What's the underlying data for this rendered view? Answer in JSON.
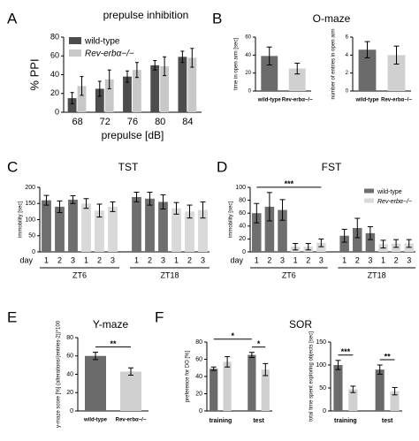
{
  "panels": [
    {
      "letter": "A",
      "title": "prepulse inhibition"
    },
    {
      "letter": "B",
      "title": "O-maze"
    },
    {
      "letter": "C",
      "title": "TST"
    },
    {
      "letter": "D",
      "title": "FST"
    },
    {
      "letter": "E",
      "title": "Y-maze"
    },
    {
      "letter": "F",
      "title": "SOR"
    }
  ],
  "chart_data": [
    {
      "type": "bar",
      "mode": "grouped",
      "ylabel": "% PPI",
      "xlabel": "prepulse [dB]",
      "categories": [
        "68",
        "72",
        "76",
        "80",
        "84"
      ],
      "series": [
        {
          "name": "wild-type",
          "color": "#4d4d4d",
          "values": [
            15,
            25,
            38,
            50,
            59
          ],
          "errors": [
            6,
            8,
            6,
            5,
            6
          ]
        },
        {
          "name": "Rev-erbα−/−",
          "color": "#c8c8c8",
          "values": [
            28,
            35,
            45,
            49,
            58
          ],
          "errors": [
            10,
            10,
            8,
            10,
            10
          ]
        }
      ],
      "ylim": [
        0,
        80
      ],
      "yticks": [
        0,
        20,
        40,
        60,
        80
      ],
      "legend": "upper left"
    },
    {
      "type": "bar",
      "mode": "single",
      "ylabel": "time in open arm [sec]",
      "categories": [
        "wild-type",
        "Rev-erbα−/−"
      ],
      "values": [
        39,
        25
      ],
      "errors": [
        10,
        6
      ],
      "colors": [
        "#6b6b6b",
        "#d0d0d0"
      ],
      "ylim": [
        0,
        60
      ],
      "yticks": [
        0,
        20,
        40,
        60
      ]
    },
    {
      "type": "bar",
      "mode": "single",
      "ylabel": "number of entries in open arm",
      "categories": [
        "wild-type",
        "Rev-erbα−/−"
      ],
      "values": [
        4.6,
        4.0
      ],
      "errors": [
        0.9,
        1.0
      ],
      "colors": [
        "#6b6b6b",
        "#d0d0d0"
      ],
      "ylim": [
        0,
        6
      ],
      "yticks": [
        0,
        2,
        4,
        6
      ]
    },
    {
      "type": "bar",
      "mode": "single",
      "ylabel": "immobility [sec]",
      "xlabel": "day",
      "categories": [
        "1",
        "2",
        "3",
        "1",
        "2",
        "3",
        "1",
        "2",
        "3",
        "1",
        "2",
        "3"
      ],
      "groups": [
        "ZT6",
        "ZT18"
      ],
      "values": [
        160,
        140,
        162,
        150,
        128,
        140,
        170,
        165,
        155,
        135,
        125,
        130
      ],
      "errors": [
        15,
        18,
        12,
        15,
        20,
        15,
        15,
        20,
        22,
        18,
        20,
        25
      ],
      "colors": [
        "#6e6e6e",
        "#6e6e6e",
        "#6e6e6e",
        "#d9d9d9",
        "#d9d9d9",
        "#d9d9d9",
        "#6e6e6e",
        "#6e6e6e",
        "#6e6e6e",
        "#d9d9d9",
        "#d9d9d9",
        "#d9d9d9"
      ],
      "ylim": [
        0,
        200
      ],
      "yticks": [
        0,
        50,
        100,
        150,
        200
      ]
    },
    {
      "type": "bar",
      "mode": "single",
      "ylabel": "immobility [sec]",
      "xlabel": "day",
      "categories": [
        "1",
        "2",
        "3",
        "1",
        "2",
        "3",
        "1",
        "2",
        "3",
        "1",
        "2",
        "3"
      ],
      "groups": [
        "ZT6",
        "ZT18"
      ],
      "values": [
        60,
        70,
        65,
        8,
        8,
        14,
        25,
        37,
        29,
        12,
        13,
        13
      ],
      "errors": [
        15,
        22,
        16,
        5,
        5,
        6,
        10,
        15,
        10,
        6,
        6,
        6
      ],
      "colors": [
        "#6e6e6e",
        "#6e6e6e",
        "#6e6e6e",
        "#d9d9d9",
        "#d9d9d9",
        "#d9d9d9",
        "#6e6e6e",
        "#6e6e6e",
        "#6e6e6e",
        "#d9d9d9",
        "#d9d9d9",
        "#d9d9d9"
      ],
      "ylim": [
        0,
        100
      ],
      "yticks": [
        0,
        20,
        40,
        60,
        80,
        100
      ],
      "legend": {
        "position": "upper right",
        "items": [
          {
            "name": "wild-type",
            "color": "#6e6e6e"
          },
          {
            "name": "Rev-erbα−/−",
            "color": "#d9d9d9"
          }
        ]
      },
      "annotations": [
        {
          "text": "***",
          "bars": [
            0,
            5
          ]
        }
      ]
    },
    {
      "type": "bar",
      "mode": "single",
      "ylabel": "y-maze score [%] (alterations/(entries-2))*100",
      "categories": [
        "wild-type",
        "Rev-erbα−/−"
      ],
      "values": [
        60,
        43
      ],
      "errors": [
        4,
        4
      ],
      "colors": [
        "#6b6b6b",
        "#d0d0d0"
      ],
      "ylim": [
        0,
        80
      ],
      "yticks": [
        0,
        20,
        40,
        60,
        80
      ],
      "annotations": [
        {
          "text": "**",
          "bars": [
            0,
            1
          ]
        }
      ]
    },
    {
      "type": "bar",
      "mode": "single",
      "ylabel": "preference for DO [%]",
      "groups": [
        "training",
        "test"
      ],
      "values": [
        49,
        57,
        65,
        48
      ],
      "errors": [
        2,
        6,
        3,
        7
      ],
      "colors": [
        "#6b6b6b",
        "#d0d0d0",
        "#6b6b6b",
        "#d0d0d0"
      ],
      "ylim": [
        0,
        80
      ],
      "yticks": [
        0,
        20,
        40,
        60,
        80
      ],
      "annotations": [
        {
          "text": "*",
          "bars": [
            2,
            3
          ]
        },
        {
          "text": "*",
          "bars": [
            0,
            2
          ]
        }
      ]
    },
    {
      "type": "bar",
      "mode": "single",
      "ylabel": "total time spent exploring objects [sec]",
      "groups": [
        "training",
        "test"
      ],
      "values": [
        100,
        47,
        90,
        43
      ],
      "errors": [
        10,
        7,
        10,
        8
      ],
      "colors": [
        "#6b6b6b",
        "#d0d0d0",
        "#6b6b6b",
        "#d0d0d0"
      ],
      "ylim": [
        0,
        150
      ],
      "yticks": [
        0,
        50,
        100,
        150
      ],
      "annotations": [
        {
          "text": "***",
          "bars": [
            0,
            1
          ]
        },
        {
          "text": "**",
          "bars": [
            2,
            3
          ]
        }
      ]
    }
  ]
}
